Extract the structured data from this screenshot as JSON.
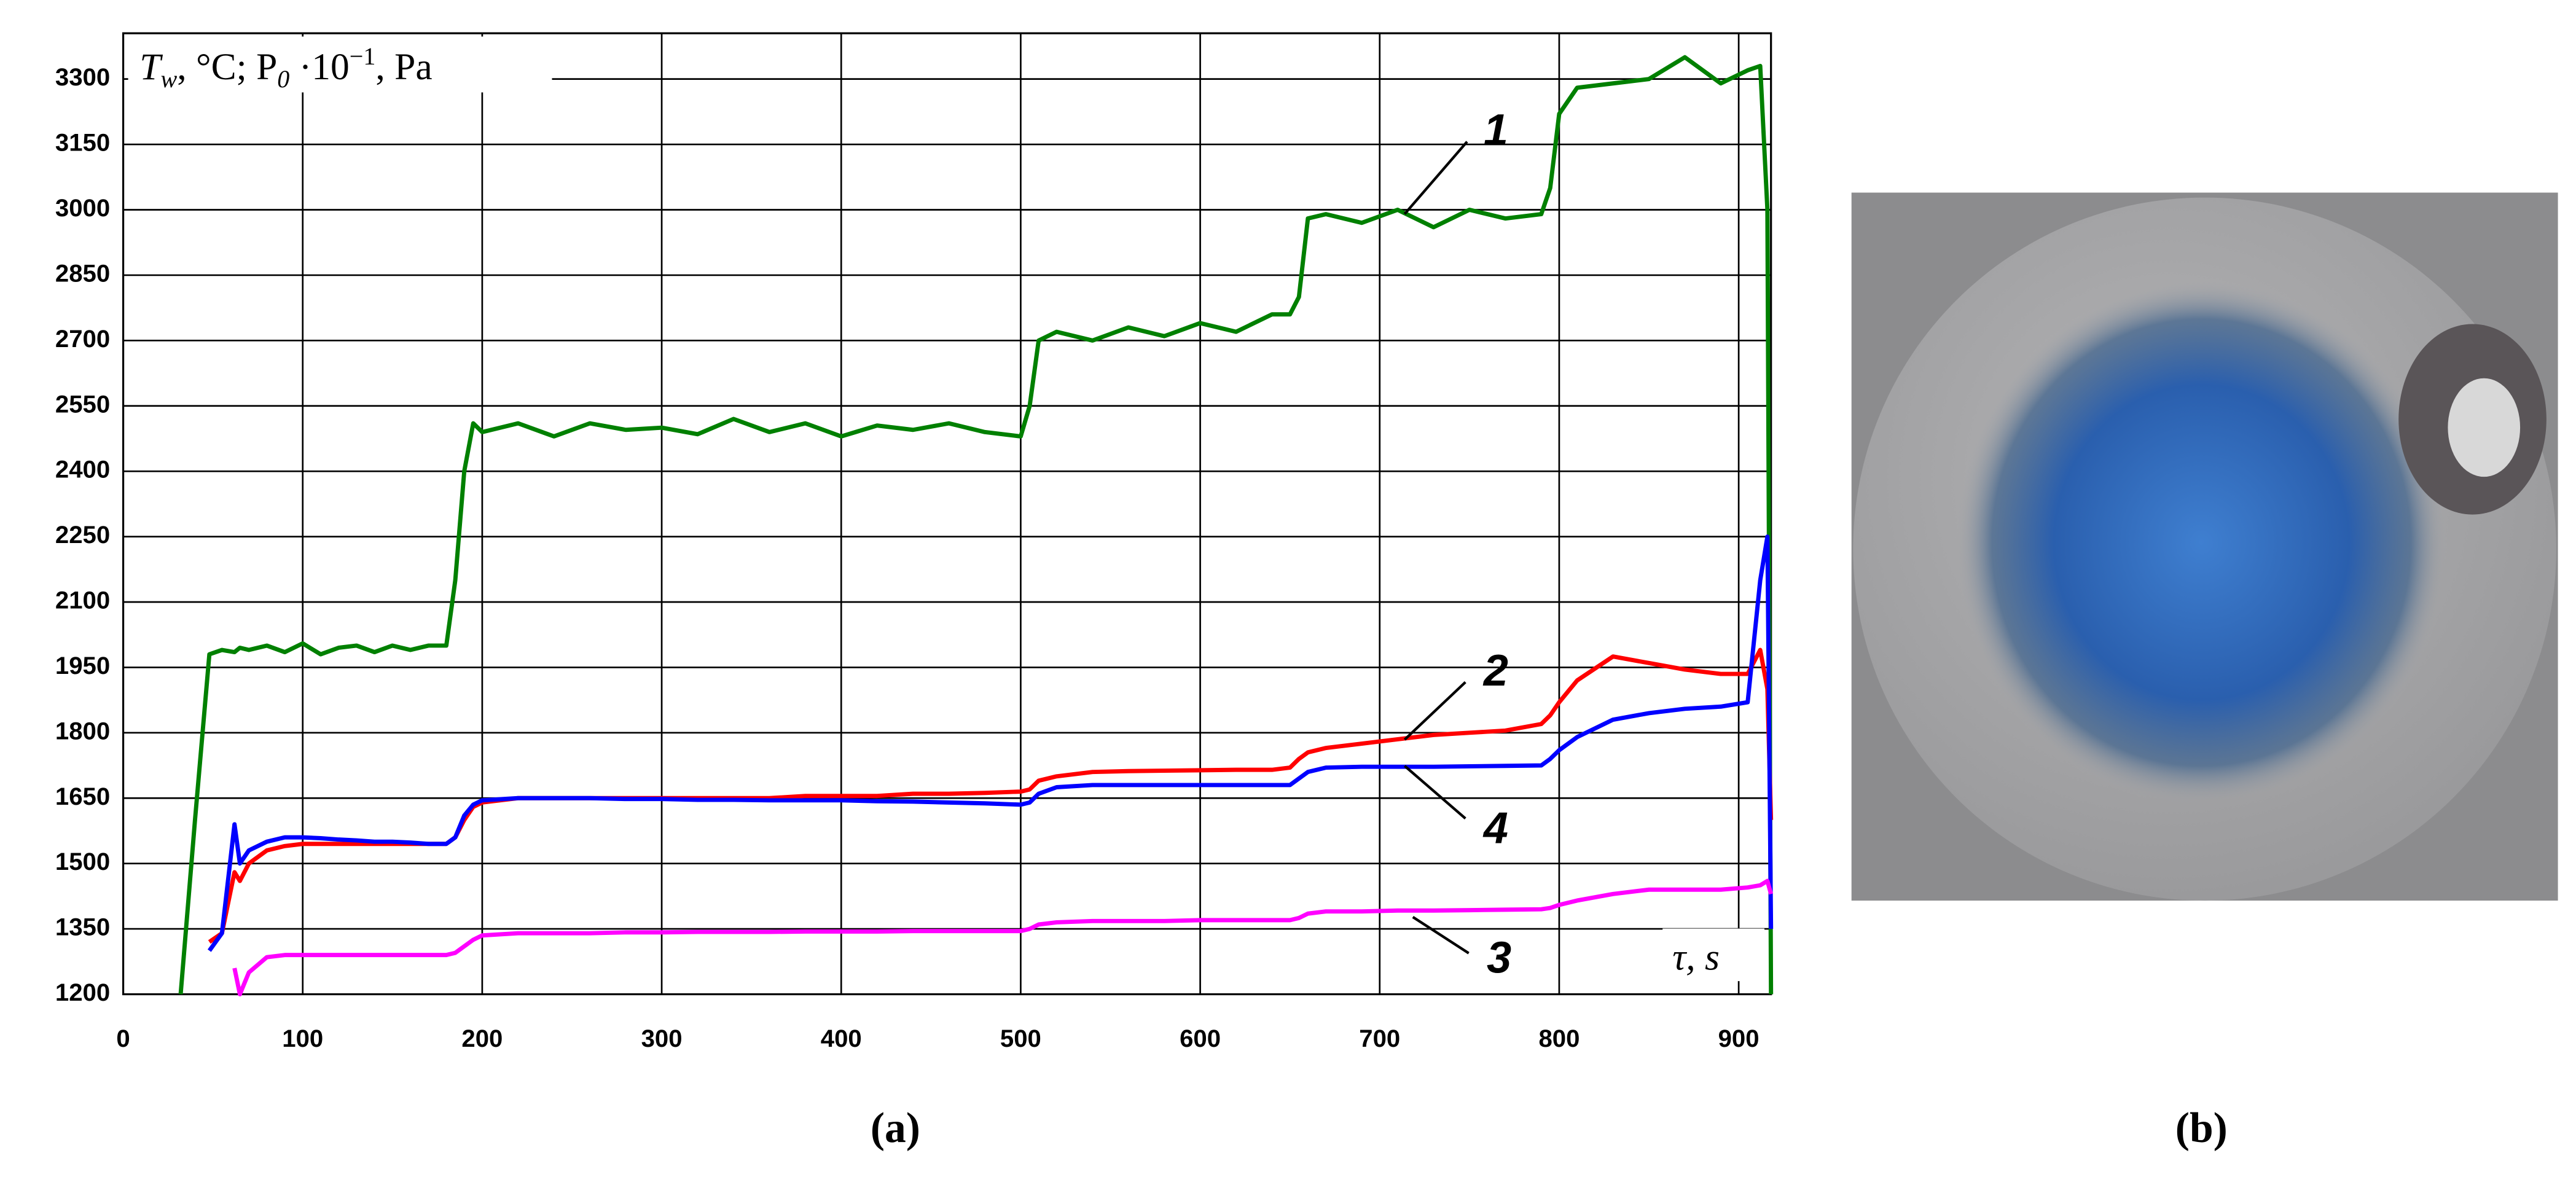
{
  "chart_data": {
    "type": "line",
    "y_label_parts": [
      "T",
      "w",
      ", °C; P",
      "0",
      " ·10",
      "−1",
      ", Pa"
    ],
    "x_label": "τ, s",
    "annotations": [
      "1",
      "2",
      "4",
      "3"
    ],
    "xlim": [
      0,
      918
    ],
    "xticks": [
      0,
      100,
      200,
      300,
      400,
      500,
      600,
      700,
      800,
      900
    ],
    "ylim": [
      1200,
      3405
    ],
    "yticks": [
      1200,
      1350,
      1500,
      1650,
      1800,
      1950,
      2100,
      2250,
      2400,
      2550,
      2700,
      2850,
      3000,
      3150,
      3300
    ],
    "grid": true,
    "x": [
      32,
      40,
      48,
      55,
      62,
      65,
      70,
      80,
      90,
      100,
      110,
      120,
      130,
      140,
      150,
      160,
      170,
      180,
      185,
      190,
      195,
      200,
      220,
      240,
      260,
      280,
      300,
      320,
      340,
      360,
      380,
      400,
      420,
      440,
      460,
      480,
      500,
      505,
      510,
      520,
      540,
      560,
      580,
      600,
      620,
      640,
      650,
      655,
      660,
      670,
      690,
      710,
      730,
      750,
      770,
      790,
      795,
      800,
      810,
      830,
      850,
      870,
      890,
      905,
      912,
      916,
      918
    ],
    "series": [
      {
        "name": "1",
        "color": "#008000",
        "values": [
          1200,
          1600,
          1980,
          1990,
          1985,
          1995,
          1990,
          2000,
          1985,
          2005,
          1980,
          1995,
          2000,
          1985,
          2000,
          1990,
          2000,
          2000,
          2150,
          2400,
          2510,
          2490,
          2510,
          2480,
          2510,
          2495,
          2500,
          2485,
          2520,
          2490,
          2510,
          2480,
          2505,
          2495,
          2510,
          2490,
          2480,
          2550,
          2700,
          2720,
          2700,
          2730,
          2710,
          2740,
          2720,
          2760,
          2760,
          2800,
          2980,
          2990,
          2970,
          3000,
          2960,
          3000,
          2980,
          2990,
          3050,
          3220,
          3280,
          3290,
          3300,
          3350,
          3290,
          3320,
          3330,
          3000,
          1200
        ]
      },
      {
        "name": "2",
        "color": "#ff0000",
        "values": [
          null,
          null,
          1320,
          1340,
          1480,
          1460,
          1500,
          1530,
          1540,
          1545,
          1545,
          1545,
          1545,
          1545,
          1545,
          1545,
          1545,
          1545,
          1560,
          1600,
          1630,
          1640,
          1650,
          1650,
          1650,
          1650,
          1650,
          1650,
          1650,
          1650,
          1655,
          1655,
          1655,
          1660,
          1660,
          1662,
          1665,
          1670,
          1690,
          1700,
          1710,
          1712,
          1713,
          1714,
          1715,
          1715,
          1720,
          1740,
          1755,
          1765,
          1775,
          1785,
          1795,
          1800,
          1805,
          1820,
          1840,
          1870,
          1920,
          1975,
          1960,
          1945,
          1935,
          1935,
          1990,
          1900,
          1600
        ]
      },
      {
        "name": "4",
        "color": "#0000ff",
        "values": [
          null,
          null,
          1300,
          1340,
          1590,
          1500,
          1530,
          1550,
          1560,
          1560,
          1558,
          1555,
          1553,
          1550,
          1550,
          1548,
          1545,
          1545,
          1560,
          1610,
          1635,
          1645,
          1650,
          1650,
          1650,
          1648,
          1648,
          1646,
          1646,
          1645,
          1645,
          1645,
          1643,
          1642,
          1640,
          1638,
          1635,
          1640,
          1660,
          1675,
          1680,
          1680,
          1680,
          1680,
          1680,
          1680,
          1680,
          1695,
          1710,
          1720,
          1722,
          1722,
          1722,
          1723,
          1724,
          1725,
          1740,
          1760,
          1790,
          1830,
          1845,
          1855,
          1860,
          1870,
          2150,
          2250,
          1350
        ]
      },
      {
        "name": "3",
        "color": "#ff00ff",
        "values": [
          null,
          null,
          null,
          null,
          1260,
          1200,
          1250,
          1285,
          1290,
          1290,
          1290,
          1290,
          1290,
          1290,
          1290,
          1290,
          1290,
          1290,
          1295,
          1310,
          1325,
          1335,
          1340,
          1340,
          1340,
          1342,
          1342,
          1343,
          1343,
          1343,
          1344,
          1344,
          1344,
          1345,
          1345,
          1345,
          1345,
          1350,
          1360,
          1365,
          1368,
          1368,
          1368,
          1370,
          1370,
          1370,
          1370,
          1375,
          1385,
          1390,
          1390,
          1392,
          1392,
          1393,
          1394,
          1395,
          1398,
          1405,
          1415,
          1430,
          1440,
          1440,
          1440,
          1445,
          1450,
          1460,
          1430
        ]
      }
    ]
  },
  "captions": [
    "(a)",
    "(b)"
  ]
}
